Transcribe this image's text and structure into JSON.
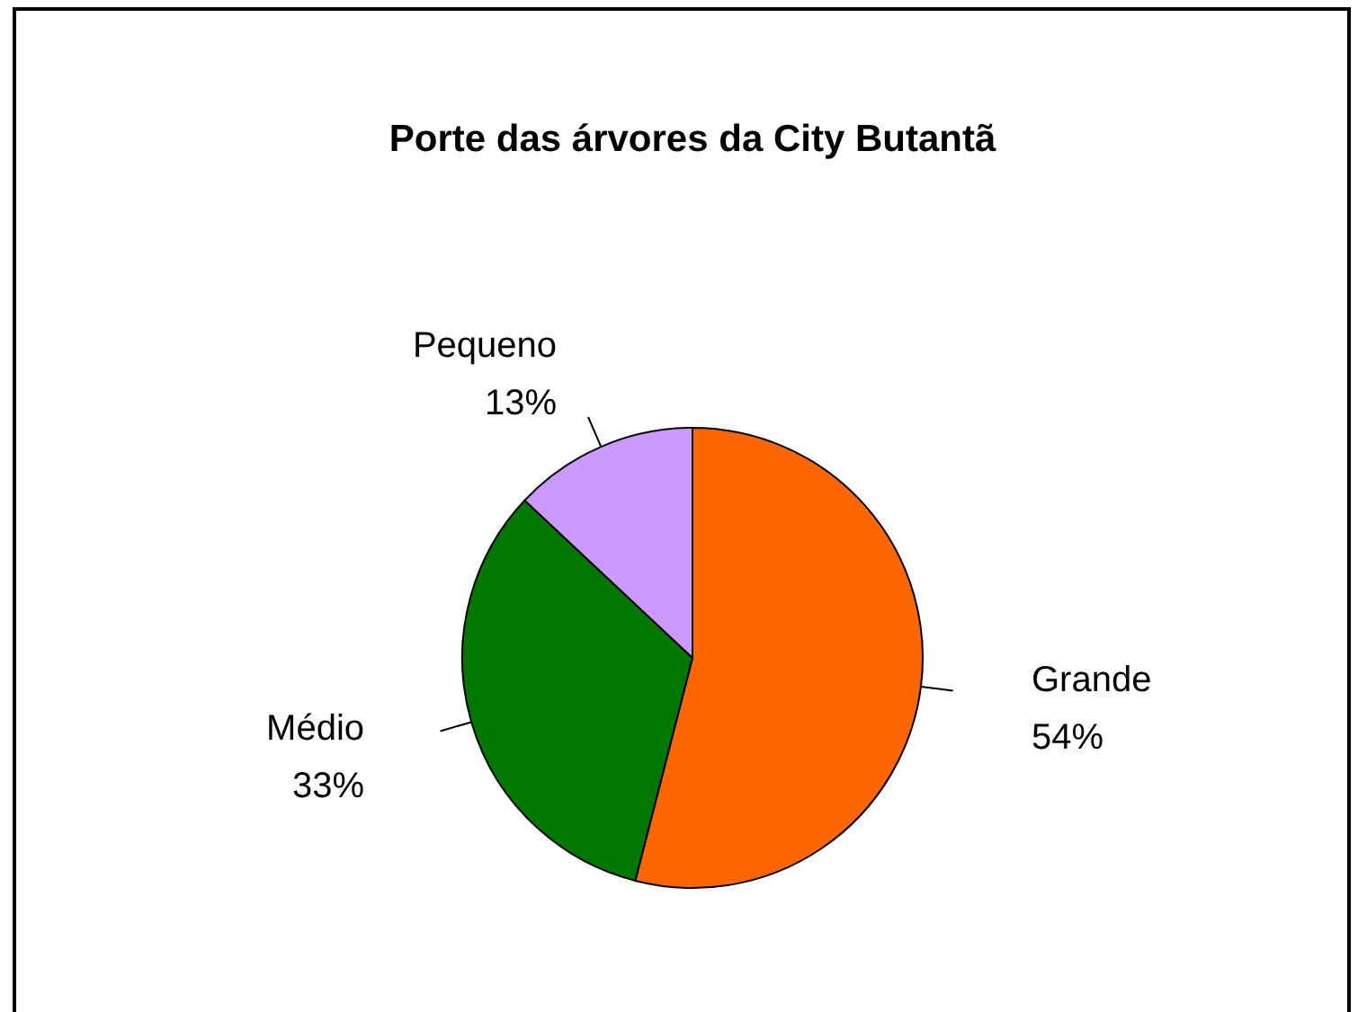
{
  "chart_data": {
    "type": "pie",
    "title": "Porte das árvores da City Butantã",
    "categories": [
      "Grande",
      "Médio",
      "Pequeno"
    ],
    "values": [
      54,
      33,
      13
    ],
    "colors": [
      "#ff6600",
      "#007800",
      "#cc99ff"
    ],
    "value_labels": [
      "54%",
      "33%",
      "13%"
    ]
  }
}
